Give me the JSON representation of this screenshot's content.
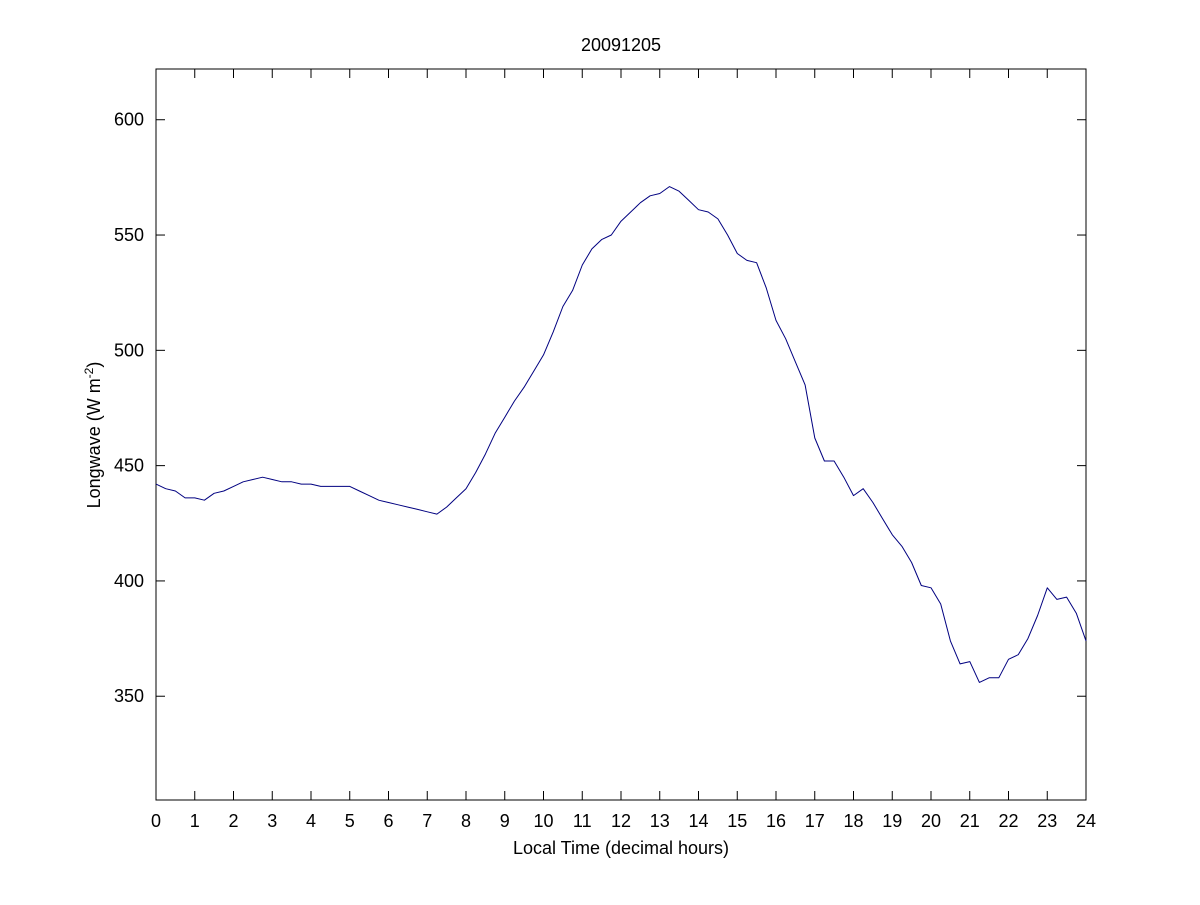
{
  "chart_data": {
    "type": "line",
    "title": "20091205",
    "xlabel": "Local Time (decimal hours)",
    "ylabel_main": "Longwave (W m",
    "ylabel_sup": "-2",
    "ylabel_close": ")",
    "xlim": [
      0,
      24
    ],
    "ylim": [
      305,
      622
    ],
    "xticks": [
      0,
      1,
      2,
      3,
      4,
      5,
      6,
      7,
      8,
      9,
      10,
      11,
      12,
      13,
      14,
      15,
      16,
      17,
      18,
      19,
      20,
      21,
      22,
      23,
      24
    ],
    "yticks": [
      350,
      400,
      450,
      500,
      550,
      600
    ],
    "grid": false,
    "series": [
      {
        "color": "#000080",
        "points": [
          [
            0.0,
            442
          ],
          [
            0.25,
            440
          ],
          [
            0.5,
            439
          ],
          [
            0.75,
            436
          ],
          [
            1.0,
            436
          ],
          [
            1.25,
            435
          ],
          [
            1.5,
            438
          ],
          [
            1.75,
            439
          ],
          [
            2.0,
            441
          ],
          [
            2.25,
            443
          ],
          [
            2.5,
            444
          ],
          [
            2.75,
            445
          ],
          [
            3.0,
            444
          ],
          [
            3.25,
            443
          ],
          [
            3.5,
            443
          ],
          [
            3.75,
            442
          ],
          [
            4.0,
            442
          ],
          [
            4.25,
            441
          ],
          [
            4.5,
            441
          ],
          [
            4.75,
            441
          ],
          [
            5.0,
            441
          ],
          [
            5.25,
            439
          ],
          [
            5.5,
            437
          ],
          [
            5.75,
            435
          ],
          [
            6.0,
            434
          ],
          [
            6.25,
            433
          ],
          [
            6.5,
            432
          ],
          [
            6.75,
            431
          ],
          [
            7.0,
            430
          ],
          [
            7.25,
            429
          ],
          [
            7.5,
            432
          ],
          [
            7.75,
            436
          ],
          [
            8.0,
            440
          ],
          [
            8.25,
            447
          ],
          [
            8.5,
            455
          ],
          [
            8.75,
            464
          ],
          [
            9.0,
            471
          ],
          [
            9.25,
            478
          ],
          [
            9.5,
            484
          ],
          [
            9.75,
            491
          ],
          [
            10.0,
            498
          ],
          [
            10.25,
            508
          ],
          [
            10.5,
            519
          ],
          [
            10.75,
            526
          ],
          [
            11.0,
            537
          ],
          [
            11.25,
            544
          ],
          [
            11.5,
            548
          ],
          [
            11.75,
            550
          ],
          [
            12.0,
            556
          ],
          [
            12.25,
            560
          ],
          [
            12.5,
            564
          ],
          [
            12.75,
            567
          ],
          [
            13.0,
            568
          ],
          [
            13.25,
            571
          ],
          [
            13.5,
            569
          ],
          [
            13.75,
            565
          ],
          [
            14.0,
            561
          ],
          [
            14.25,
            560
          ],
          [
            14.5,
            557
          ],
          [
            14.75,
            550
          ],
          [
            15.0,
            542
          ],
          [
            15.25,
            539
          ],
          [
            15.5,
            538
          ],
          [
            15.75,
            527
          ],
          [
            16.0,
            513
          ],
          [
            16.25,
            505
          ],
          [
            16.5,
            495
          ],
          [
            16.75,
            485
          ],
          [
            17.0,
            462
          ],
          [
            17.25,
            452
          ],
          [
            17.5,
            452
          ],
          [
            17.75,
            445
          ],
          [
            18.0,
            437
          ],
          [
            18.25,
            440
          ],
          [
            18.5,
            434
          ],
          [
            18.75,
            427
          ],
          [
            19.0,
            420
          ],
          [
            19.25,
            415
          ],
          [
            19.5,
            408
          ],
          [
            19.75,
            398
          ],
          [
            20.0,
            397
          ],
          [
            20.25,
            390
          ],
          [
            20.5,
            374
          ],
          [
            20.75,
            364
          ],
          [
            21.0,
            365
          ],
          [
            21.25,
            356
          ],
          [
            21.5,
            358
          ],
          [
            21.75,
            358
          ],
          [
            22.0,
            366
          ],
          [
            22.25,
            368
          ],
          [
            22.5,
            375
          ],
          [
            22.75,
            385
          ],
          [
            23.0,
            397
          ],
          [
            23.25,
            392
          ],
          [
            23.5,
            393
          ],
          [
            23.75,
            386
          ],
          [
            24.0,
            374
          ]
        ]
      }
    ]
  }
}
